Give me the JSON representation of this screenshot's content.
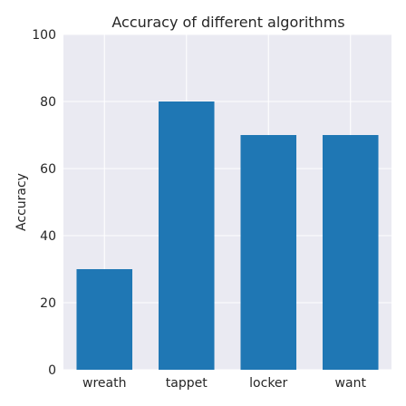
{
  "chart_data": {
    "type": "bar",
    "title": "Accuracy of different algorithms",
    "xlabel": "",
    "ylabel": "Accuracy",
    "categories": [
      "wreath",
      "tappet",
      "locker",
      "want"
    ],
    "values": [
      30,
      80,
      70,
      70
    ],
    "ylim": [
      0,
      100
    ],
    "yticks": [
      0,
      20,
      40,
      60,
      80,
      100
    ],
    "grid": true,
    "bar_color": "#1f77b4",
    "background_color": "#eaeaf2"
  }
}
